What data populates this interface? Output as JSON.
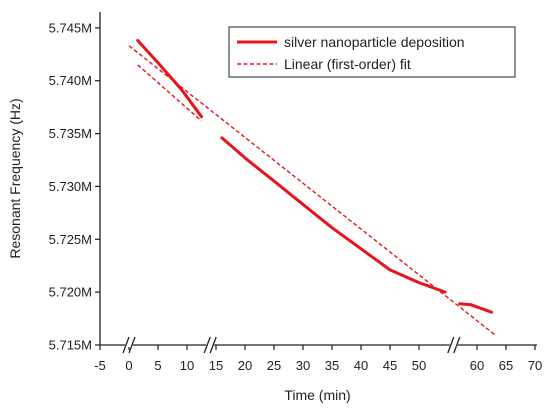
{
  "chart_data": {
    "type": "line",
    "xlabel": "Time (min)",
    "ylabel": "Resonant Frequency (Hz)",
    "x_ticks": [
      -5,
      0,
      5,
      10,
      15,
      20,
      25,
      30,
      35,
      40,
      45,
      50,
      60,
      65,
      70
    ],
    "x_tick_labels": [
      "-5",
      "0",
      "5",
      "10",
      "15",
      "20",
      "25",
      "30",
      "35",
      "40",
      "45",
      "50",
      "60",
      "65",
      "70"
    ],
    "xlim": [
      -5,
      70
    ],
    "y_ticks": [
      5715000,
      5720000,
      5725000,
      5730000,
      5735000,
      5740000,
      5745000
    ],
    "y_tick_labels": [
      "5.715M",
      "5.720M",
      "5.725M",
      "5.730M",
      "5.735M",
      "5.740M",
      "5.745M"
    ],
    "ylim": [
      5715000,
      5746500
    ],
    "axis_breaks_x": [
      0,
      14,
      56
    ],
    "legend_position": "top-right",
    "series": [
      {
        "name": "silver nanoparticle deposition",
        "style": "solid",
        "color": "#e8141b",
        "segments": [
          [
            [
              1.5,
              5743800
            ],
            [
              5,
              5741700
            ],
            [
              9,
              5739200
            ],
            [
              12.5,
              5736600
            ]
          ],
          [
            [
              16,
              5734600
            ],
            [
              20,
              5732700
            ],
            [
              25,
              5730500
            ],
            [
              30,
              5728300
            ],
            [
              35,
              5726100
            ],
            [
              40,
              5724100
            ],
            [
              45,
              5722100
            ],
            [
              50,
              5720900
            ],
            [
              54.5,
              5720000
            ]
          ],
          [
            [
              57,
              5718900
            ],
            [
              59,
              5718800
            ],
            [
              62.5,
              5718100
            ]
          ]
        ]
      },
      {
        "name": "Linear (first-order) fit",
        "style": "dashed",
        "color": "#e8141b",
        "segments": [
          [
            [
              0,
              5743300
            ],
            [
              63,
              5716000
            ]
          ],
          [
            [
              1.5,
              5741500
            ],
            [
              12.5,
              5736200
            ]
          ]
        ]
      }
    ]
  }
}
